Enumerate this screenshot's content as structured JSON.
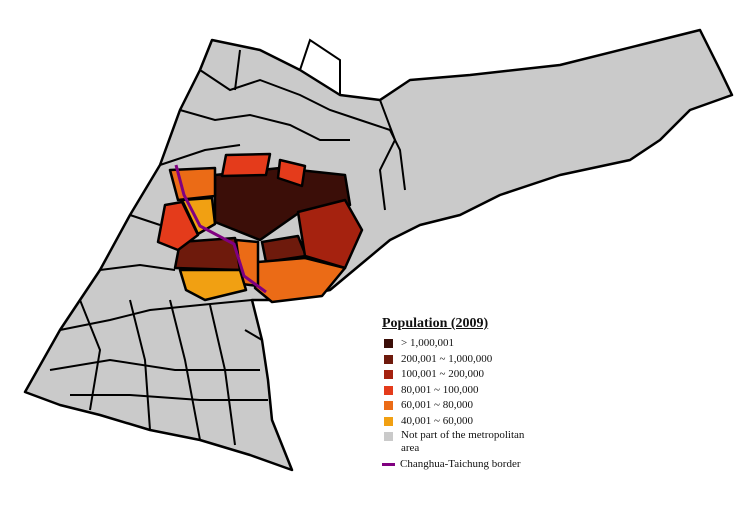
{
  "legend": {
    "title": "Population (2009)",
    "items": [
      {
        "label": "> 1,000,001",
        "color": "#3b0e08"
      },
      {
        "label": "200,001 ~ 1,000,000",
        "color": "#6e1a0c"
      },
      {
        "label": "100,001 ~ 200,000",
        "color": "#a5220f"
      },
      {
        "label": "80,001 ~ 100,000",
        "color": "#e43b1b"
      },
      {
        "label": "60,001 ~ 80,000",
        "color": "#eb6b16"
      },
      {
        "label": "40,001 ~ 60,000",
        "color": "#f1a012"
      },
      {
        "label": "Not part of the metropolitan area",
        "color": "#cacaca"
      }
    ],
    "border": {
      "label": "Changhua-Taichung border",
      "color": "#800080"
    }
  }
}
